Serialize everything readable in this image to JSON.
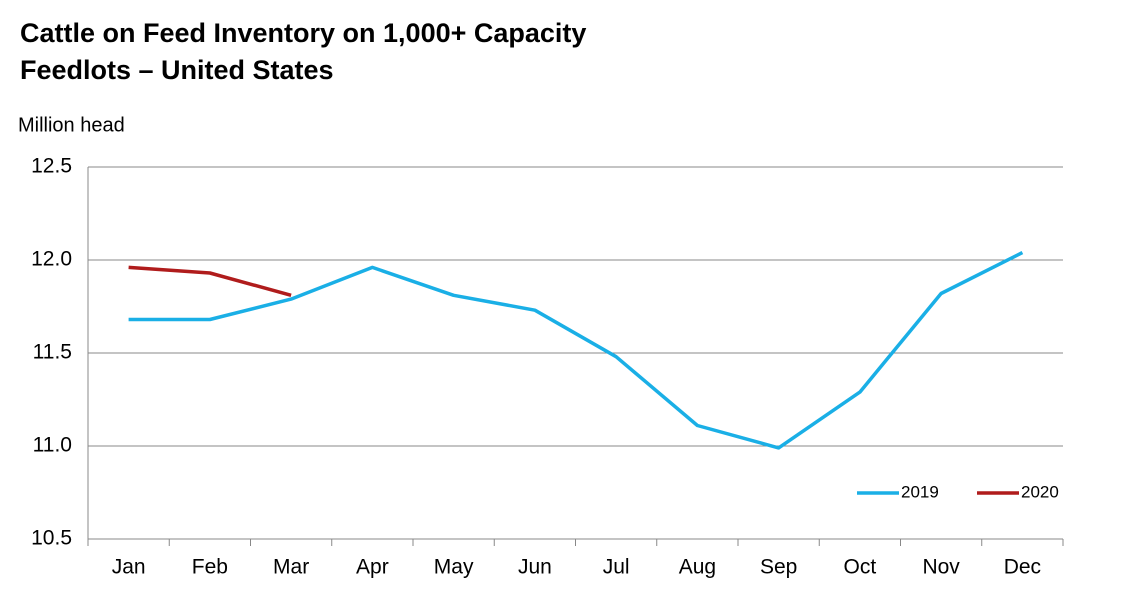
{
  "chart_data": {
    "type": "line",
    "title": [
      "Cattle on Feed Inventory on 1,000+ Capacity",
      "Feedlots – United States"
    ],
    "y_label": "Million head",
    "categories": [
      "Jan",
      "Feb",
      "Mar",
      "Apr",
      "May",
      "Jun",
      "Jul",
      "Aug",
      "Sep",
      "Oct",
      "Nov",
      "Dec"
    ],
    "series": [
      {
        "name": "2019",
        "color": "#1aafe6",
        "values": [
          11.68,
          11.68,
          11.79,
          11.96,
          11.81,
          11.73,
          11.48,
          11.11,
          10.99,
          11.29,
          11.82,
          12.04
        ]
      },
      {
        "name": "2020",
        "color": "#b01c1c",
        "values": [
          11.96,
          11.93,
          11.81,
          null,
          null,
          null,
          null,
          null,
          null,
          null,
          null,
          null
        ]
      }
    ],
    "ylim": [
      10.5,
      12.5
    ],
    "yticks": [
      10.5,
      {
        "value": 11,
        "label": "11.0"
      },
      11.5,
      {
        "value": 12,
        "label": "12.0"
      },
      12.5
    ],
    "grid": true,
    "legend": "lower right"
  }
}
